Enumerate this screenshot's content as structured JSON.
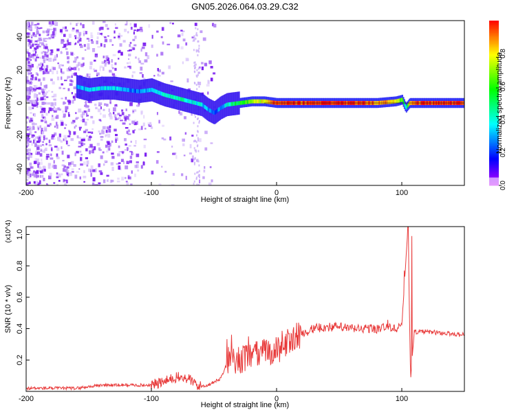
{
  "title": "GN05.2026.064.03.29.C32",
  "chart_data": [
    {
      "type": "heatmap",
      "xlabel": "Height of straight line (km)",
      "ylabel": "Frequency (Hz)",
      "xlim": [
        -200,
        150
      ],
      "ylim": [
        -50,
        50
      ],
      "xticks": [
        -200,
        -100,
        0,
        100
      ],
      "yticks": [
        -40,
        -20,
        0,
        20,
        40
      ],
      "colorbar": {
        "label": "Normalized spectral amplitude",
        "range": [
          0,
          1
        ],
        "ticks": [
          0.0,
          0.2,
          0.4,
          0.6,
          0.8
        ],
        "tick_labels": [
          "0.0",
          "0.2",
          "0.4",
          "0.6",
          "0.8"
        ]
      },
      "ridge": {
        "x": [
          -160,
          -150,
          -140,
          -130,
          -120,
          -110,
          -100,
          -90,
          -80,
          -70,
          -60,
          -55,
          -50,
          -45,
          -40,
          -30,
          -20,
          -10,
          0,
          20,
          40,
          60,
          80,
          95,
          100,
          103,
          106,
          120,
          150
        ],
        "frequency_hz": [
          10,
          8,
          9,
          9,
          8,
          7,
          8,
          5,
          3,
          1,
          -1,
          -4,
          -6,
          -3,
          -1,
          0,
          1,
          1,
          0,
          0,
          0,
          0,
          0,
          1,
          2,
          -3,
          0,
          0,
          0
        ],
        "amplitude": [
          0.3,
          0.35,
          0.35,
          0.33,
          0.3,
          0.25,
          0.35,
          0.4,
          0.45,
          0.4,
          0.35,
          0.3,
          0.25,
          0.3,
          0.4,
          0.55,
          0.7,
          0.8,
          0.95,
          0.95,
          1.0,
          0.95,
          0.9,
          0.8,
          0.6,
          0.4,
          0.9,
          0.95,
          0.95
        ]
      }
    },
    {
      "type": "line",
      "xlabel": "Height of straight line (km)",
      "ylabel": "SNR (10 * v/v)",
      "scale_label": "(x10^4)",
      "xlim": [
        -200,
        150
      ],
      "ylim": [
        0,
        1.05
      ],
      "xticks": [
        -200,
        -100,
        0,
        100
      ],
      "yticks": [
        0.2,
        0.4,
        0.6,
        0.8,
        1.0
      ],
      "ytick_labels": [
        "0.2",
        "0.4",
        "0.6",
        "0.8",
        "1.0"
      ],
      "series": [
        {
          "name": "SNR",
          "color": "#e83a3a",
          "x": [
            -200,
            -160,
            -140,
            -120,
            -100,
            -90,
            -80,
            -70,
            -62,
            -55,
            -45,
            -38,
            -30,
            -20,
            -10,
            0,
            10,
            20,
            30,
            40,
            50,
            60,
            70,
            80,
            85,
            95,
            100,
            103,
            105,
            107,
            110,
            120,
            150
          ],
          "y": [
            0.02,
            0.02,
            0.04,
            0.04,
            0.04,
            0.06,
            0.09,
            0.08,
            0.03,
            0.04,
            0.08,
            0.2,
            0.2,
            0.22,
            0.25,
            0.26,
            0.32,
            0.37,
            0.4,
            0.41,
            0.41,
            0.4,
            0.4,
            0.4,
            0.41,
            0.4,
            0.42,
            0.8,
            1.05,
            0.08,
            0.38,
            0.38,
            0.36
          ]
        }
      ]
    }
  ]
}
